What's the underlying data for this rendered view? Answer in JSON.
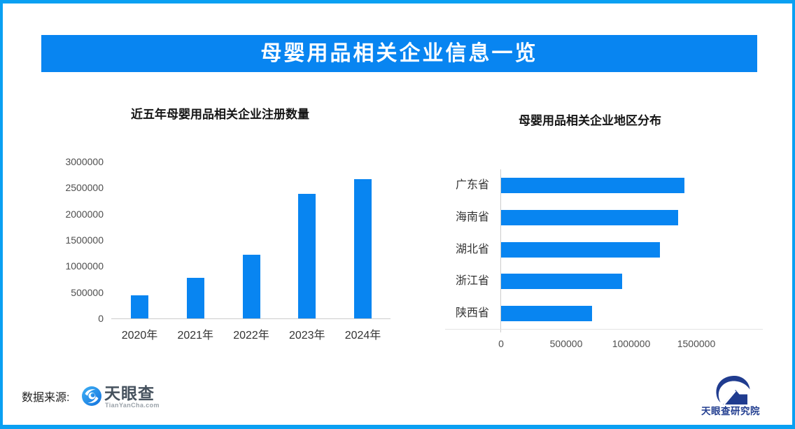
{
  "header": {
    "title": "母婴用品相关企业信息一览"
  },
  "colors": {
    "accent": "#0885F1",
    "frame_border": "#0AA0F2",
    "logo_navy": "#203C8F"
  },
  "chart_data": [
    {
      "type": "bar",
      "orientation": "vertical",
      "title": "近五年母婴用品相关企业注册数量",
      "categories": [
        "2020年",
        "2021年",
        "2022年",
        "2023年",
        "2024年"
      ],
      "values": [
        440000,
        780000,
        1220000,
        2390000,
        2670000
      ],
      "ylim": [
        0,
        3000000
      ],
      "yticks": [
        0,
        500000,
        1000000,
        1500000,
        2000000,
        2500000,
        3000000
      ],
      "bar_color": "#0885F1",
      "grid": false,
      "legend": "none"
    },
    {
      "type": "bar",
      "orientation": "horizontal",
      "title": "母婴用品相关企业地区分布",
      "categories": [
        "广东省",
        "海南省",
        "湖北省",
        "浙江省",
        "陕西省"
      ],
      "values": [
        1410000,
        1360000,
        1220000,
        930000,
        700000
      ],
      "xlim": [
        0,
        2000000
      ],
      "xticks": [
        0,
        500000,
        1000000,
        1500000
      ],
      "bar_color": "#0885F1",
      "grid": false,
      "legend": "none"
    }
  ],
  "footer": {
    "data_source_label": "数据来源:",
    "tianyancha": {
      "wordmark": "天眼查",
      "domain": "TianYanCha.com"
    },
    "research_institute": "天眼查研究院"
  }
}
